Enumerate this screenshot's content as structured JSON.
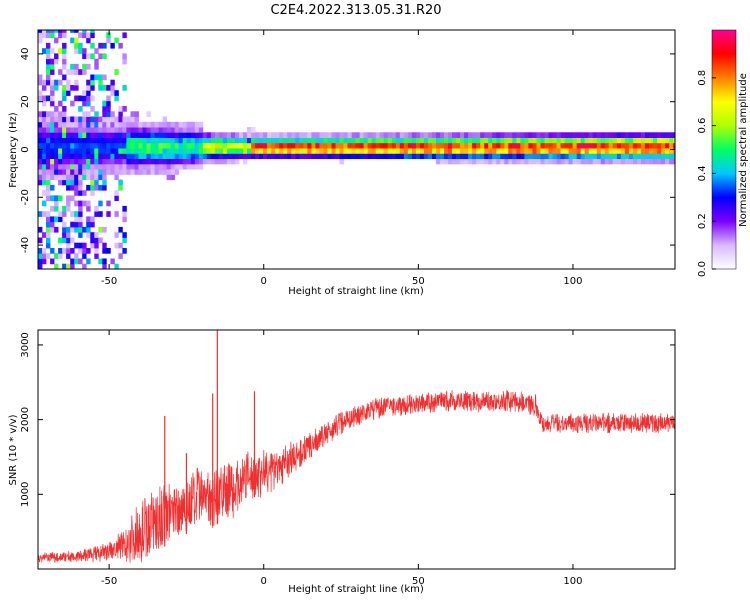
{
  "title": "C2E4.2022.313.05.31.R20",
  "chart_data": [
    {
      "type": "heatmap",
      "xlabel": "Height of straight line (km)",
      "ylabel": "Frequency (Hz)",
      "xlim": [
        -73,
        133
      ],
      "ylim": [
        -50,
        50
      ],
      "x_ticks": [
        -50,
        0,
        50,
        100
      ],
      "y_ticks": [
        -40,
        -20,
        0,
        20,
        40
      ],
      "colorbar": {
        "label": "Normalized spectral amplitude",
        "range": [
          0,
          1
        ],
        "ticks": [
          "0.0",
          "0.2",
          "0.4",
          "0.6",
          "0.8"
        ],
        "colors": [
          "#ffffff",
          "#d9b8ff",
          "#7a00ff",
          "#0000ff",
          "#00c8ff",
          "#00ff60",
          "#b0ff00",
          "#ffff00",
          "#ff8000",
          "#ff0000",
          "#ff0090"
        ]
      },
      "description_values": {
        "signal_center_hz": 0,
        "signal_half_width_hz": [
          {
            "x": -73,
            "width": 3
          },
          {
            "x": -20,
            "width": 2
          },
          {
            "x": 0,
            "width": 1.5
          },
          {
            "x": 133,
            "width": 2
          }
        ],
        "noise_region_x": [
          -73,
          -45
        ]
      }
    },
    {
      "type": "line",
      "xlabel": "Height of straight line (km)",
      "ylabel": "SNR (10 * v/v)",
      "xlim": [
        -73,
        133
      ],
      "ylim": [
        0,
        3200
      ],
      "x_ticks": [
        -50,
        0,
        50,
        100
      ],
      "y_ticks": [
        1000,
        2000,
        3000
      ],
      "series": [
        {
          "color": "#f03030",
          "x": [
            -73,
            -60,
            -50,
            -45,
            -40,
            -35,
            -30,
            -25,
            -20,
            -15,
            -10,
            -5,
            0,
            5,
            10,
            15,
            20,
            25,
            30,
            35,
            40,
            50,
            60,
            70,
            80,
            88,
            90,
            100,
            110,
            120,
            133
          ],
          "mean": [
            150,
            170,
            220,
            330,
            500,
            650,
            750,
            850,
            950,
            1000,
            1080,
            1250,
            1280,
            1350,
            1500,
            1650,
            1800,
            1970,
            2050,
            2150,
            2180,
            2200,
            2250,
            2250,
            2250,
            2200,
            1950,
            1950,
            1950,
            1950,
            1950
          ],
          "amp": [
            60,
            70,
            120,
            220,
            380,
            420,
            400,
            380,
            420,
            400,
            350,
            300,
            300,
            250,
            200,
            160,
            150,
            150,
            140,
            140,
            130,
            130,
            130,
            130,
            130,
            130,
            120,
            120,
            120,
            120,
            120
          ],
          "spikes": [
            {
              "x": -15,
              "y": 3200
            },
            {
              "x": -16.5,
              "y": 2350
            },
            {
              "x": -3,
              "y": 2380
            },
            {
              "x": -32,
              "y": 2050
            },
            {
              "x": -25,
              "y": 1550
            },
            {
              "x": 12,
              "y": 1720
            }
          ]
        }
      ]
    }
  ]
}
